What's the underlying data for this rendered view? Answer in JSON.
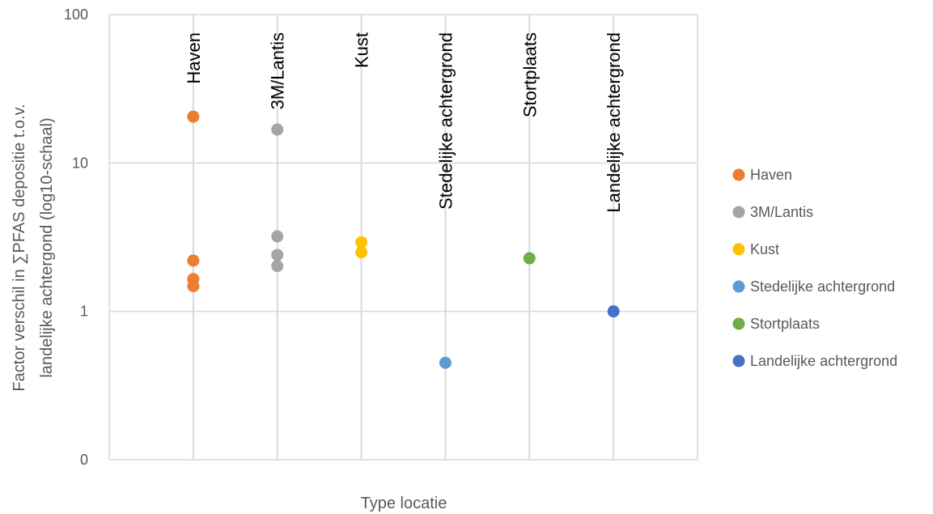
{
  "chart_data": {
    "type": "scatter",
    "title": "",
    "xlabel": "Type locatie",
    "ylabel_lines": [
      "Factor verschil in ∑PFAS depositie t.o.v.",
      "landelijke achtergond (log10-schaal)"
    ],
    "y_scale": "log10",
    "ylim": [
      0.1,
      100
    ],
    "y_ticks": [
      {
        "value": 0.1,
        "label": "0"
      },
      {
        "value": 1,
        "label": "1"
      },
      {
        "value": 10,
        "label": "10"
      },
      {
        "value": 100,
        "label": "100"
      }
    ],
    "grid": true,
    "legend_position": "right",
    "categories": [
      "Haven",
      "3M/Lantis",
      "Kust",
      "Stedelijke achtergrond",
      "Stortplaats",
      "Landelijke achtergrond"
    ],
    "series": [
      {
        "name": "Haven",
        "color": "#ED7D31",
        "category_index": 0,
        "values": [
          20.5,
          2.2,
          1.65,
          1.48
        ]
      },
      {
        "name": "3M/Lantis",
        "color": "#A5A5A5",
        "category_index": 1,
        "values": [
          16.8,
          3.2,
          2.4,
          2.02
        ]
      },
      {
        "name": "Kust",
        "color": "#FFC000",
        "category_index": 2,
        "values": [
          2.92,
          2.5
        ]
      },
      {
        "name": "Stedelijke achtergrond",
        "color": "#5B9BD5",
        "category_index": 3,
        "values": [
          0.45
        ]
      },
      {
        "name": "Stortplaats",
        "color": "#70AD47",
        "category_index": 4,
        "values": [
          2.28
        ]
      },
      {
        "name": "Landelijke achtergrond",
        "color": "#4472C4",
        "category_index": 5,
        "values": [
          1.0
        ]
      }
    ]
  }
}
